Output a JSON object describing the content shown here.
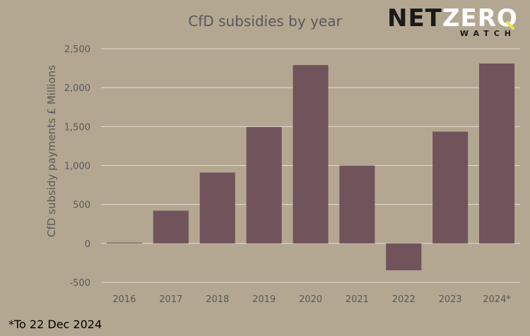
{
  "chart_data": {
    "type": "bar",
    "title": "CfD subsidies by year",
    "ylabel": "CfD subsidy payments £ Millions",
    "xlabel": "",
    "categories": [
      "2016",
      "2017",
      "2018",
      "2019",
      "2020",
      "2021",
      "2022",
      "2023",
      "2024*"
    ],
    "values": [
      10,
      420,
      910,
      1495,
      2290,
      1000,
      -345,
      1435,
      2310
    ],
    "ylim": [
      -500,
      2500
    ],
    "yticks": [
      -500,
      0,
      500,
      1000,
      1500,
      2000,
      2500
    ],
    "ytick_labels": [
      "-500",
      "0",
      "500",
      "1,000",
      "1,500",
      "2,000",
      "2,500"
    ],
    "grid": true,
    "bar_color": "#70535b",
    "background_color": "#b3a792"
  },
  "logo": {
    "part1": "NET",
    "part2": "ZERO",
    "part3": "WATCH"
  },
  "footnote": "*To 22 Dec 2024"
}
